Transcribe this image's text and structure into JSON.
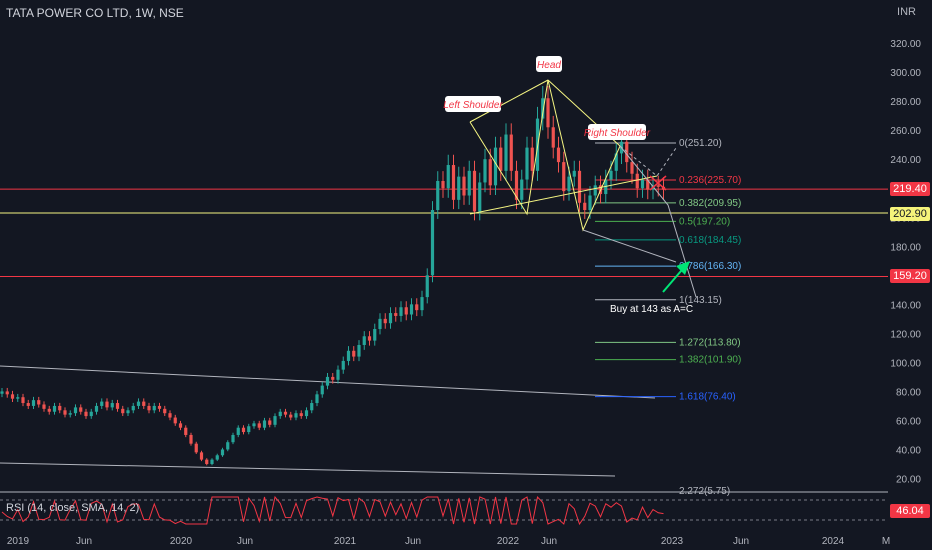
{
  "header": {
    "title": "TATA POWER CO LTD, 1W, NSE",
    "currency": "INR"
  },
  "rsi": {
    "label": "RSI (14, close, SMA, 14, 2)",
    "value": "46.04"
  },
  "colors": {
    "bg": "#131722",
    "up": "#26a69a",
    "down": "#ef5350",
    "red_line": "#f23645",
    "yellow_line": "#f5f582",
    "rsi_line": "#f23645"
  },
  "price_tags": [
    {
      "value": "219.40",
      "bg": "#f23645",
      "fg": "#ffffff"
    },
    {
      "value": "202.90",
      "bg": "#f5f37a",
      "fg": "#131722"
    },
    {
      "value": "159.20",
      "bg": "#f23645",
      "fg": "#ffffff"
    }
  ],
  "chart_data": {
    "type": "candlestick",
    "y_axis": {
      "ticks": [
        "320.00",
        "300.00",
        "280.00",
        "260.00",
        "240.00",
        "220.00",
        "200.00",
        "180.00",
        "160.00",
        "140.00",
        "120.00",
        "100.00",
        "80.00",
        "60.00",
        "40.00",
        "20.00"
      ],
      "ylim": [
        10,
        335
      ]
    },
    "x_axis": {
      "ticks": [
        "2019",
        "Jun",
        "2020",
        "Jun",
        "2021",
        "Jun",
        "2022",
        "Jun",
        "2023",
        "Jun",
        "2024",
        "M"
      ]
    },
    "horizontal_lines": [
      219.4,
      202.9,
      159.2
    ],
    "pattern_labels": [
      "Left Shoulder",
      "Head",
      "Right Shoulder"
    ],
    "annotation": "Buy at 143 as A=C",
    "fib_levels": [
      {
        "ratio": "0",
        "price": 251.2,
        "label": "0(251.20)",
        "color": "#b2b5be"
      },
      {
        "ratio": "0.236",
        "price": 225.7,
        "label": "0.236(225.70)",
        "color": "#f23645"
      },
      {
        "ratio": "0.382",
        "price": 209.95,
        "label": "0.382(209.95)",
        "color": "#81c784"
      },
      {
        "ratio": "0.5",
        "price": 197.2,
        "label": "0.5(197.20)",
        "color": "#4caf50"
      },
      {
        "ratio": "0.618",
        "price": 184.45,
        "label": "0.618(184.45)",
        "color": "#089981"
      },
      {
        "ratio": "0.786",
        "price": 166.3,
        "label": "0.786(166.30)",
        "color": "#64b5f6"
      },
      {
        "ratio": "1",
        "price": 143.15,
        "label": "1(143.15)",
        "color": "#b2b5be"
      },
      {
        "ratio": "1.272",
        "price": 113.8,
        "label": "1.272(113.80)",
        "color": "#81c784"
      },
      {
        "ratio": "1.382",
        "price": 101.9,
        "label": "1.382(101.90)",
        "color": "#4caf50"
      },
      {
        "ratio": "1.618",
        "price": 76.4,
        "label": "1.618(76.40)",
        "color": "#2962ff"
      },
      {
        "ratio": "2.272",
        "price": 5.75,
        "label": "2.272(5.75)",
        "color": "#b2b5be"
      }
    ],
    "closes": [
      80,
      78,
      75,
      76,
      72,
      70,
      74,
      71,
      68,
      66,
      70,
      67,
      64,
      65,
      69,
      66,
      63,
      66,
      70,
      73,
      69,
      72,
      68,
      65,
      67,
      70,
      73,
      70,
      67,
      70,
      68,
      65,
      62,
      58,
      55,
      50,
      44,
      38,
      33,
      30,
      33,
      36,
      40,
      45,
      50,
      55,
      52,
      56,
      58,
      55,
      60,
      57,
      63,
      66,
      64,
      62,
      65,
      63,
      67,
      72,
      78,
      84,
      90,
      88,
      95,
      101,
      108,
      104,
      112,
      118,
      115,
      123,
      130,
      127,
      134,
      132,
      138,
      133,
      140,
      136,
      145,
      160,
      205,
      225,
      220,
      236,
      212,
      228,
      215,
      232,
      204,
      224,
      240,
      222,
      248,
      232,
      257,
      232,
      212,
      226,
      248,
      232,
      268,
      282,
      262,
      248,
      238,
      218,
      228,
      232,
      210,
      205,
      215,
      222,
      216,
      226,
      232,
      244,
      252,
      238,
      230,
      220,
      226,
      219,
      222,
      221,
      219
    ]
  }
}
